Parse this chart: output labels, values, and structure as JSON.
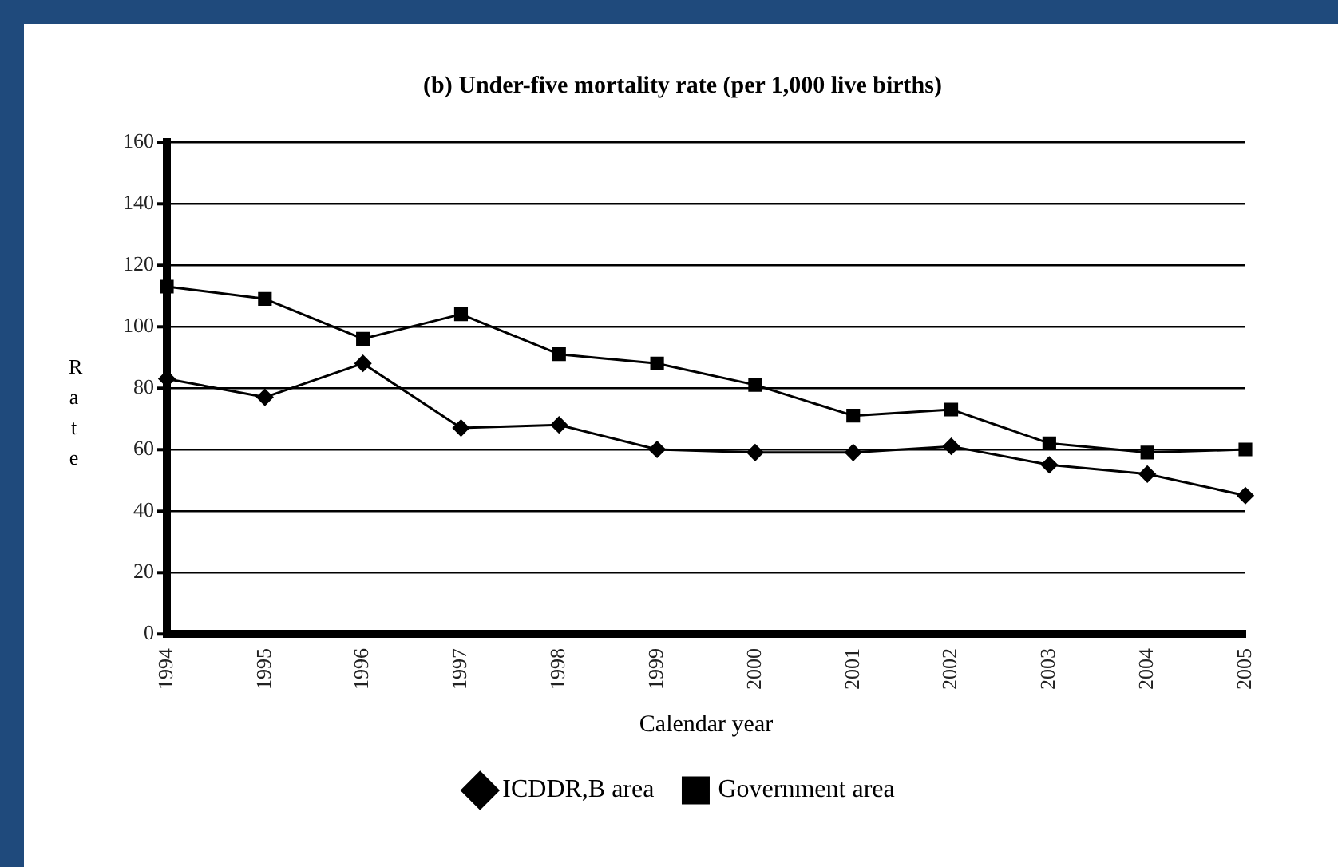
{
  "chart_data": {
    "type": "line",
    "title": "(b) Under-five mortality rate (per 1,000 live births)",
    "xlabel": "Calendar year",
    "ylabel": "Rate",
    "categories": [
      "1994",
      "1995",
      "1996",
      "1997",
      "1998",
      "1999",
      "2000",
      "2001",
      "2002",
      "2003",
      "2004",
      "2005"
    ],
    "series": [
      {
        "name": "ICDDR,B area",
        "color": "#000000",
        "marker": "diamond",
        "values": [
          83,
          77,
          88,
          67,
          68,
          60,
          59,
          59,
          61,
          55,
          52,
          45
        ]
      },
      {
        "name": "Government area",
        "color": "#000000",
        "marker": "square",
        "values": [
          113,
          109,
          96,
          104,
          91,
          88,
          81,
          71,
          73,
          62,
          59,
          60
        ]
      }
    ],
    "ylim": [
      0,
      160
    ],
    "yticks": [
      0,
      20,
      40,
      60,
      80,
      100,
      120,
      140,
      160
    ],
    "grid": "y",
    "legend": "bottom",
    "line_style": "solid"
  }
}
